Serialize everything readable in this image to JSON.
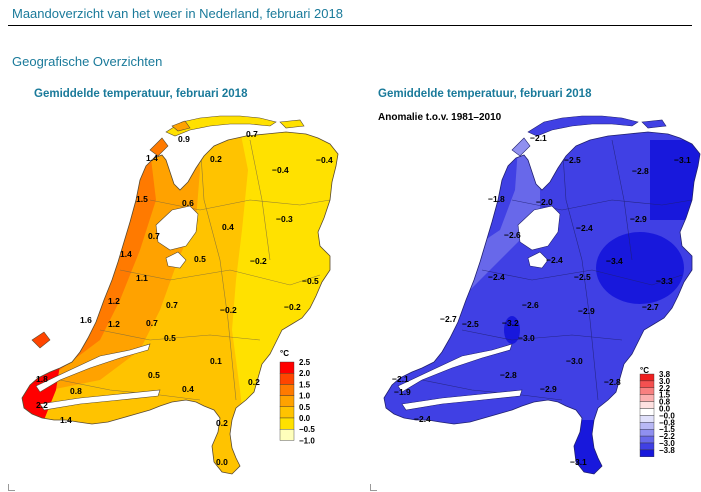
{
  "page_title": "Maandoverzicht van het weer in Nederland, februari 2018",
  "section_title": "Geografische Overzichten",
  "maps": [
    {
      "title": "Gemiddelde temperatuur, februari 2018",
      "subtitle": "",
      "legend": {
        "unit": "°C",
        "colors": [
          "#ff0000",
          "#ff4500",
          "#ff7a00",
          "#ffa200",
          "#ffc300",
          "#ffe100",
          "#ffffbb"
        ],
        "labels": [
          "2.5",
          "2.0",
          "1.5",
          "1.0",
          "0.5",
          "0.0",
          "−0.5",
          "−1.0"
        ]
      },
      "values": [
        {
          "id": "t1",
          "text": "0.9"
        },
        {
          "id": "t2",
          "text": "0.7"
        },
        {
          "id": "t3",
          "text": "1.4"
        },
        {
          "id": "t4",
          "text": "0.2"
        },
        {
          "id": "t5",
          "text": "−0.4"
        },
        {
          "id": "t6",
          "text": "−0.4"
        },
        {
          "id": "t7",
          "text": "1.5"
        },
        {
          "id": "t8",
          "text": "0.6"
        },
        {
          "id": "t9",
          "text": "−0.3"
        },
        {
          "id": "t10",
          "text": "0.7"
        },
        {
          "id": "t11",
          "text": "0.4"
        },
        {
          "id": "t12",
          "text": "1.4"
        },
        {
          "id": "t13",
          "text": "0.5"
        },
        {
          "id": "t14",
          "text": "−0.2"
        },
        {
          "id": "t15",
          "text": "1.1"
        },
        {
          "id": "t16",
          "text": "−0.5"
        },
        {
          "id": "t17",
          "text": "1.2"
        },
        {
          "id": "t18",
          "text": "0.7"
        },
        {
          "id": "t19",
          "text": "−0.2"
        },
        {
          "id": "t20",
          "text": "−0.2"
        },
        {
          "id": "t21",
          "text": "1.6"
        },
        {
          "id": "t22",
          "text": "1.2"
        },
        {
          "id": "t23",
          "text": "0.7"
        },
        {
          "id": "t24",
          "text": "0.5"
        },
        {
          "id": "t25",
          "text": "0.1"
        },
        {
          "id": "t26",
          "text": "1.8"
        },
        {
          "id": "t27",
          "text": "2.2"
        },
        {
          "id": "t28",
          "text": "0.8"
        },
        {
          "id": "t29",
          "text": "0.5"
        },
        {
          "id": "t30",
          "text": "0.2"
        },
        {
          "id": "t31",
          "text": "0.4"
        },
        {
          "id": "t32",
          "text": "1.4"
        },
        {
          "id": "t33",
          "text": "0.2"
        },
        {
          "id": "t34",
          "text": "0.0"
        }
      ]
    },
    {
      "title": "Gemiddelde temperatuur, februari 2018",
      "subtitle": "Anomalie t.o.v. 1981–2010",
      "legend": {
        "unit": "°C",
        "colors": [
          "#ee2020",
          "#f45050",
          "#f88080",
          "#fbb0b0",
          "#fde0e0",
          "#ffffff",
          "#e0e0fb",
          "#b8b8f5",
          "#9090f0",
          "#6868ea",
          "#4040e4",
          "#1818dc"
        ],
        "labels": [
          "3.8",
          "3.0",
          "2.2",
          "1.5",
          "0.8",
          "0.0",
          "−0.0",
          "−0.8",
          "−1.5",
          "−2.2",
          "−3.0",
          "−3.8"
        ]
      },
      "values": [
        {
          "id": "a1",
          "text": "−2.1"
        },
        {
          "id": "a2",
          "text": "−2.5"
        },
        {
          "id": "a3",
          "text": "−2.8"
        },
        {
          "id": "a4",
          "text": "−3.1"
        },
        {
          "id": "a5",
          "text": "−1.8"
        },
        {
          "id": "a6",
          "text": "−2.0"
        },
        {
          "id": "a7",
          "text": "−2.9"
        },
        {
          "id": "a8",
          "text": "−2.6"
        },
        {
          "id": "a9",
          "text": "−2.4"
        },
        {
          "id": "a10",
          "text": "−2.4"
        },
        {
          "id": "a11",
          "text": "−3.4"
        },
        {
          "id": "a12",
          "text": "−2.4"
        },
        {
          "id": "a13",
          "text": "−2.5"
        },
        {
          "id": "a14",
          "text": "−3.3"
        },
        {
          "id": "a15",
          "text": "−2.6"
        },
        {
          "id": "a16",
          "text": "−2.7"
        },
        {
          "id": "a17",
          "text": "−2.7"
        },
        {
          "id": "a18",
          "text": "−2.5"
        },
        {
          "id": "a19",
          "text": "−3.2"
        },
        {
          "id": "a20",
          "text": "−2.9"
        },
        {
          "id": "a21",
          "text": "−3.0"
        },
        {
          "id": "a22",
          "text": "−3.0"
        },
        {
          "id": "a23",
          "text": "−2.8"
        },
        {
          "id": "a24",
          "text": "−2.1"
        },
        {
          "id": "a25",
          "text": "−2.8"
        },
        {
          "id": "a26",
          "text": "−1.9"
        },
        {
          "id": "a27",
          "text": "−2.9"
        },
        {
          "id": "a28",
          "text": "−2.4"
        },
        {
          "id": "a29",
          "text": "−3.1"
        }
      ]
    }
  ]
}
